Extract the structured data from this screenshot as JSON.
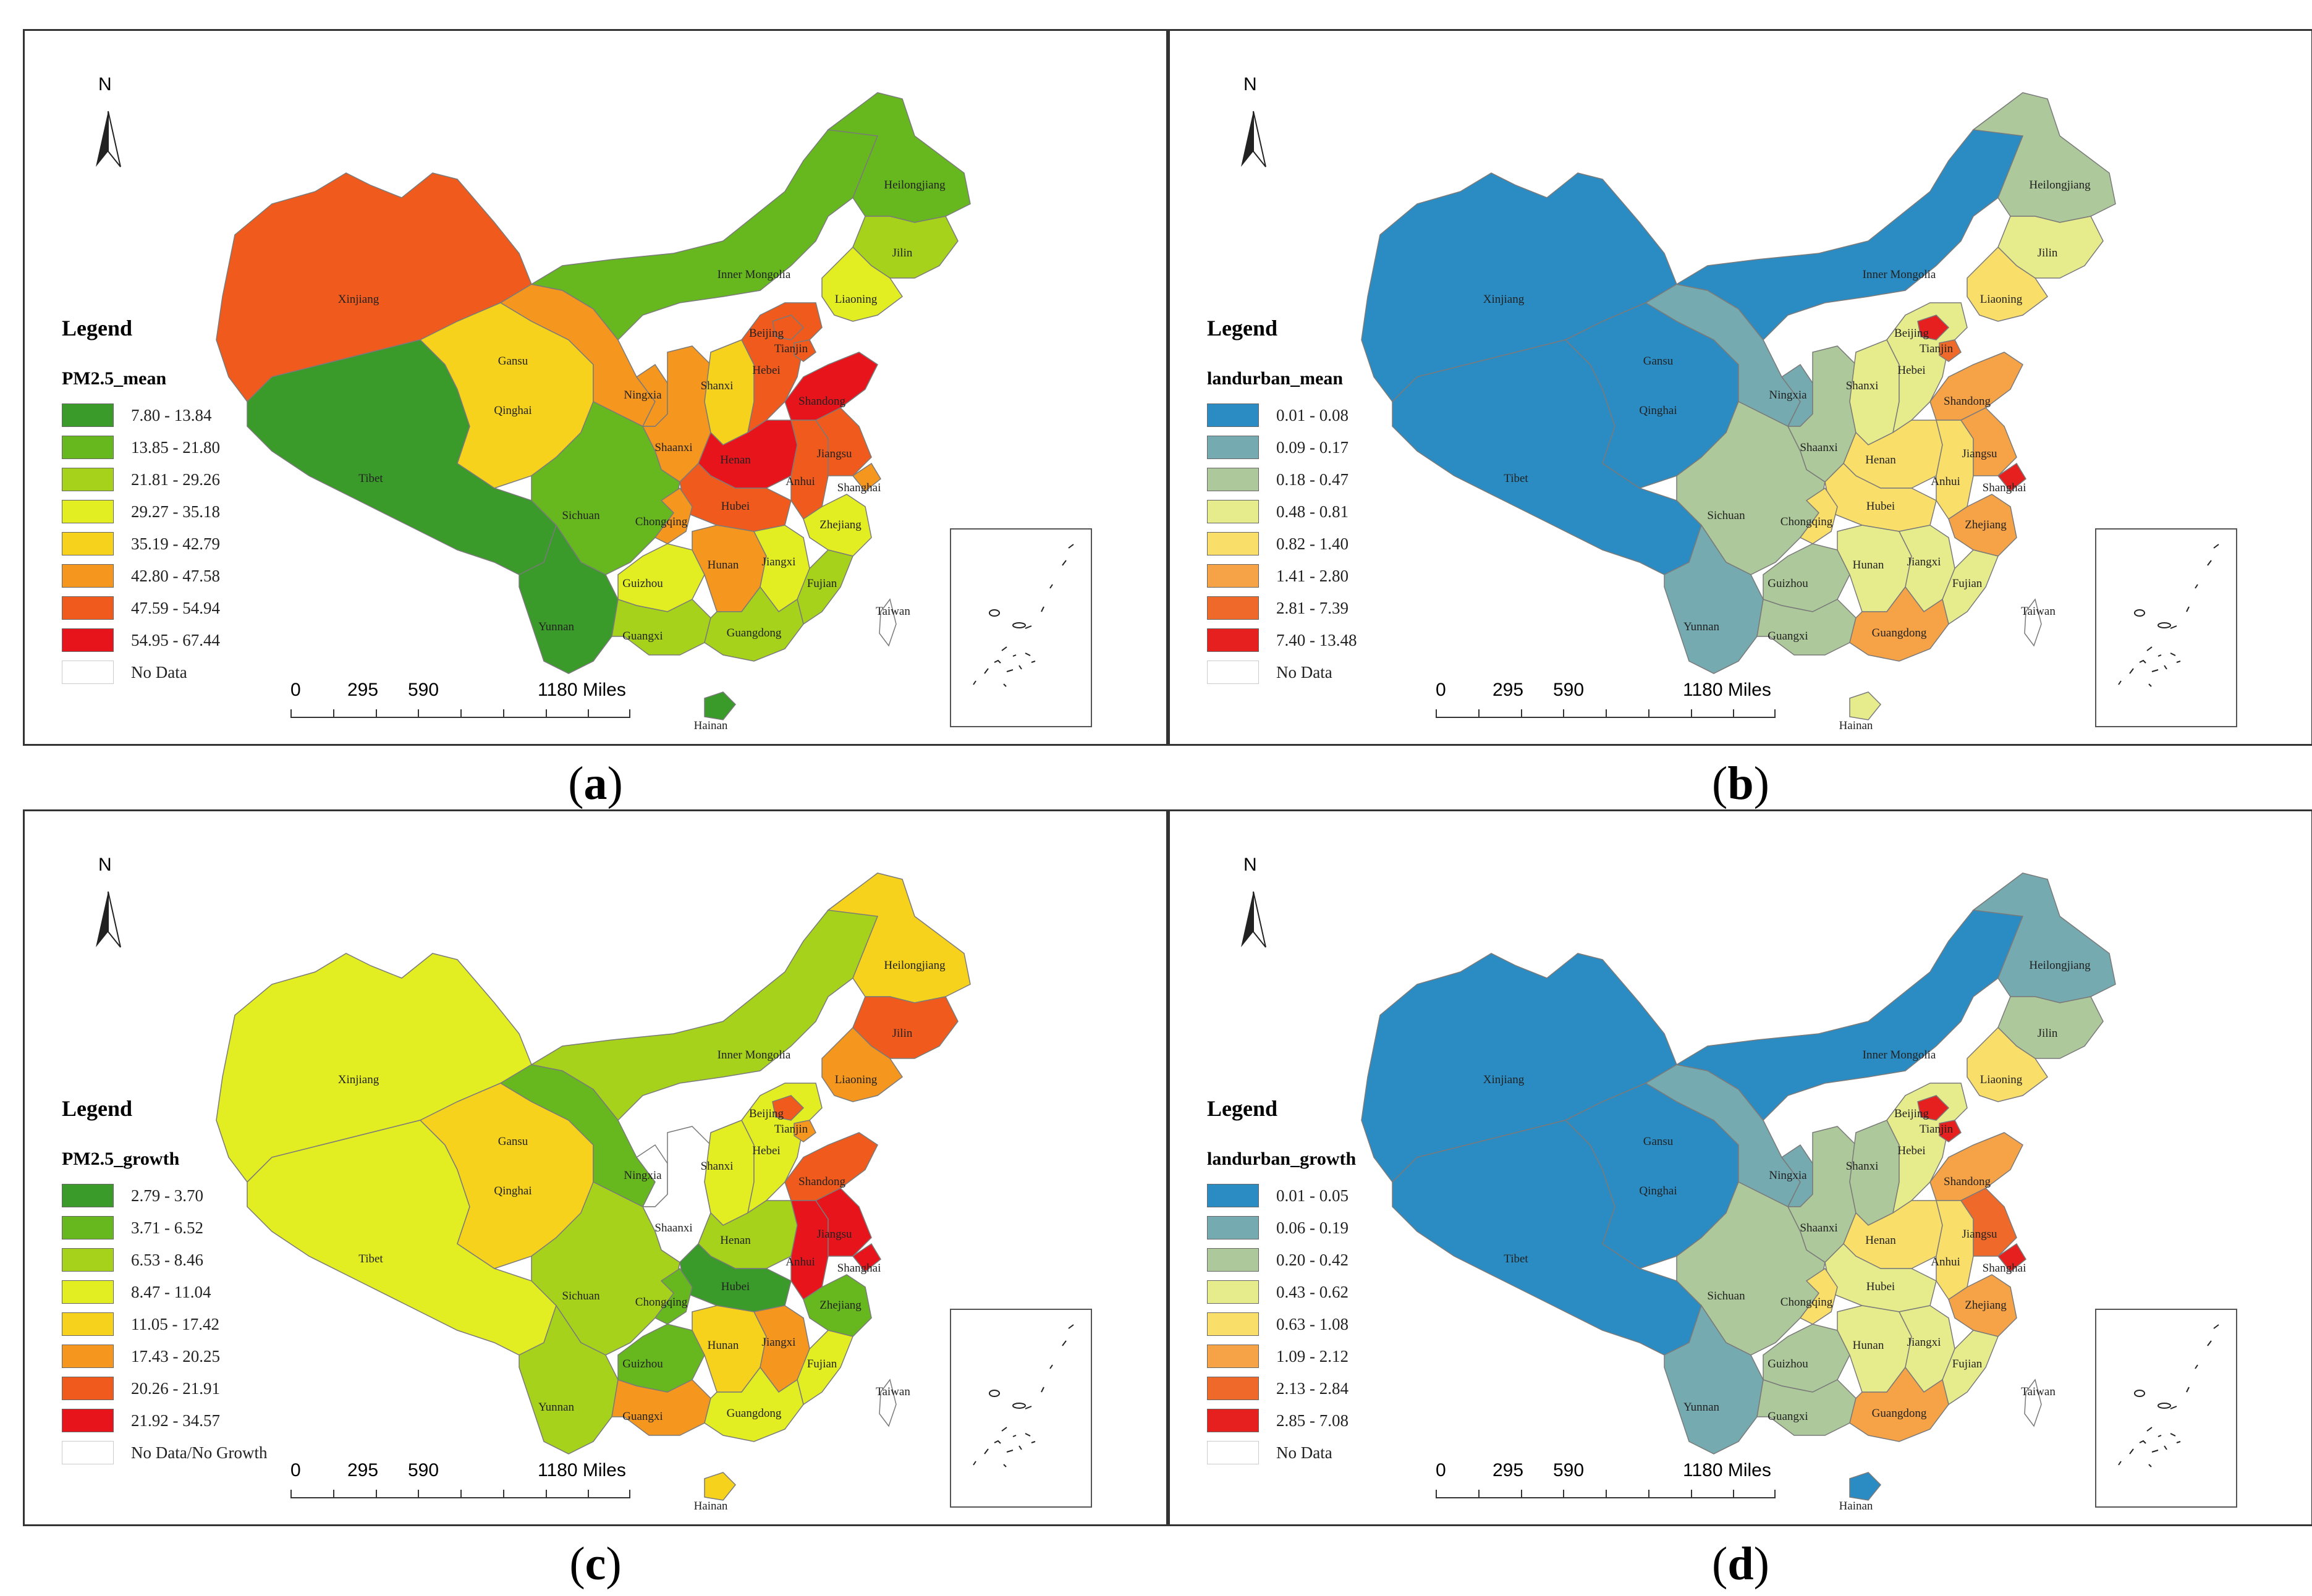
{
  "panels": [
    {
      "id": "a",
      "caption_letter": "a",
      "legend_title": "Legend",
      "field_name": "PM2.5_mean",
      "classes": [
        {
          "label": "7.80 - 13.84",
          "color": "#3a9a2a"
        },
        {
          "label": "13.85 - 21.80",
          "color": "#66b81e"
        },
        {
          "label": "21.81 - 29.26",
          "color": "#a6d21c"
        },
        {
          "label": "29.27 - 35.18",
          "color": "#e2ed22"
        },
        {
          "label": "35.19 - 42.79",
          "color": "#f6d21c"
        },
        {
          "label": "42.80 - 47.58",
          "color": "#f5961f"
        },
        {
          "label": "47.59 - 54.94",
          "color": "#f05a1c"
        },
        {
          "label": "54.95 - 67.44",
          "color": "#e8141c"
        }
      ],
      "no_data_label": "No Data",
      "province_classes": {
        "xinjiang": 6,
        "tibet": 0,
        "qinghai": 4,
        "gansu": 5,
        "innermongolia": 1,
        "heilongjiang": 1,
        "jilin": 2,
        "liaoning": 3,
        "ningxia": 5,
        "shaanxi": 5,
        "shanxi": 4,
        "hebei": 6,
        "beijing": 6,
        "tianjin": 6,
        "shandong": 7,
        "henan": 7,
        "anhui": 6,
        "jiangsu": 6,
        "shanghai": 5,
        "hubei": 6,
        "sichuan": 1,
        "chongqing": 5,
        "yunnan": 0,
        "guizhou": 3,
        "hunan": 5,
        "jiangxi": 3,
        "zhejiang": 3,
        "fujian": 2,
        "guangxi": 2,
        "guangdong": 2,
        "hainan": 0,
        "taiwan": -1
      }
    },
    {
      "id": "b",
      "caption_letter": "b",
      "legend_title": "Legend",
      "field_name": "landurban_mean",
      "classes": [
        {
          "label": "0.01 - 0.08",
          "color": "#2b8cc4"
        },
        {
          "label": "0.09 - 0.17",
          "color": "#74aab0"
        },
        {
          "label": "0.18 - 0.47",
          "color": "#adc89a"
        },
        {
          "label": "0.48 - 0.81",
          "color": "#e6ec8c"
        },
        {
          "label": "0.82 - 1.40",
          "color": "#fade6a"
        },
        {
          "label": "1.41 - 2.80",
          "color": "#f6a246"
        },
        {
          "label": "2.81 - 7.39",
          "color": "#ef6a2a"
        },
        {
          "label": "7.40 - 13.48",
          "color": "#e6201e"
        }
      ],
      "no_data_label": "No Data",
      "province_classes": {
        "xinjiang": 0,
        "tibet": 0,
        "qinghai": 0,
        "gansu": 1,
        "innermongolia": 0,
        "heilongjiang": 2,
        "jilin": 3,
        "liaoning": 4,
        "ningxia": 1,
        "shaanxi": 2,
        "shanxi": 3,
        "hebei": 3,
        "beijing": 7,
        "tianjin": 6,
        "shandong": 5,
        "henan": 4,
        "anhui": 4,
        "jiangsu": 5,
        "shanghai": 7,
        "hubei": 4,
        "sichuan": 2,
        "chongqing": 4,
        "yunnan": 1,
        "guizhou": 2,
        "hunan": 3,
        "jiangxi": 3,
        "zhejiang": 5,
        "fujian": 3,
        "guangxi": 2,
        "guangdong": 5,
        "hainan": 3,
        "taiwan": -1
      }
    },
    {
      "id": "c",
      "caption_letter": "c",
      "legend_title": "Legend",
      "field_name": "PM2.5_growth",
      "classes": [
        {
          "label": "2.79 - 3.70",
          "color": "#3a9a2a"
        },
        {
          "label": "3.71 - 6.52",
          "color": "#66b81e"
        },
        {
          "label": "6.53 - 8.46",
          "color": "#a6d21c"
        },
        {
          "label": "8.47 - 11.04",
          "color": "#e2ed22"
        },
        {
          "label": "11.05 - 17.42",
          "color": "#f6d21c"
        },
        {
          "label": "17.43 - 20.25",
          "color": "#f5961f"
        },
        {
          "label": "20.26 - 21.91",
          "color": "#f05a1c"
        },
        {
          "label": "21.92 - 34.57",
          "color": "#e8141c"
        }
      ],
      "no_data_label": "No Data/No Growth",
      "province_classes": {
        "xinjiang": 3,
        "tibet": 3,
        "qinghai": 4,
        "gansu": 1,
        "innermongolia": 2,
        "heilongjiang": 4,
        "jilin": 6,
        "liaoning": 5,
        "ningxia": -1,
        "shaanxi": -1,
        "shanxi": 3,
        "hebei": 3,
        "beijing": 6,
        "tianjin": 5,
        "shandong": 6,
        "henan": 2,
        "anhui": 7,
        "jiangsu": 7,
        "shanghai": 7,
        "hubei": 0,
        "sichuan": 2,
        "chongqing": 1,
        "yunnan": 2,
        "guizhou": 1,
        "hunan": 4,
        "jiangxi": 5,
        "zhejiang": 1,
        "fujian": 3,
        "guangxi": 5,
        "guangdong": 3,
        "hainan": 4,
        "taiwan": -1
      }
    },
    {
      "id": "d",
      "caption_letter": "d",
      "legend_title": "Legend",
      "field_name": "landurban_growth",
      "classes": [
        {
          "label": "0.01 - 0.05",
          "color": "#2b8cc4"
        },
        {
          "label": "0.06 - 0.19",
          "color": "#74aab0"
        },
        {
          "label": "0.20 - 0.42",
          "color": "#adc89a"
        },
        {
          "label": "0.43 - 0.62",
          "color": "#e6ec8c"
        },
        {
          "label": "0.63 - 1.08",
          "color": "#fade6a"
        },
        {
          "label": "1.09 - 2.12",
          "color": "#f6a246"
        },
        {
          "label": "2.13 - 2.84",
          "color": "#ef6a2a"
        },
        {
          "label": "2.85 - 7.08",
          "color": "#e6201e"
        }
      ],
      "no_data_label": "No Data",
      "province_classes": {
        "xinjiang": 0,
        "tibet": 0,
        "qinghai": 0,
        "gansu": 1,
        "innermongolia": 0,
        "heilongjiang": 1,
        "jilin": 2,
        "liaoning": 4,
        "ningxia": 1,
        "shaanxi": 2,
        "shanxi": 2,
        "hebei": 3,
        "beijing": 7,
        "tianjin": 7,
        "shandong": 5,
        "henan": 4,
        "anhui": 4,
        "jiangsu": 6,
        "shanghai": 7,
        "hubei": 3,
        "sichuan": 2,
        "chongqing": 4,
        "yunnan": 1,
        "guizhou": 2,
        "hunan": 3,
        "jiangxi": 3,
        "zhejiang": 5,
        "fujian": 3,
        "guangxi": 2,
        "guangdong": 5,
        "hainan": 0,
        "taiwan": -1
      }
    }
  ],
  "provinces": [
    {
      "key": "xinjiang",
      "name": "Xinjiang"
    },
    {
      "key": "tibet",
      "name": "Tibet"
    },
    {
      "key": "qinghai",
      "name": "Qinghai"
    },
    {
      "key": "gansu",
      "name": "Gansu"
    },
    {
      "key": "innermongolia",
      "name": "Inner Mongolia"
    },
    {
      "key": "heilongjiang",
      "name": "Heilongjiang"
    },
    {
      "key": "jilin",
      "name": "Jilin"
    },
    {
      "key": "liaoning",
      "name": "Liaoning"
    },
    {
      "key": "ningxia",
      "name": "Ningxia"
    },
    {
      "key": "shaanxi",
      "name": "Shaanxi"
    },
    {
      "key": "shanxi",
      "name": "Shanxi"
    },
    {
      "key": "hebei",
      "name": "Hebei"
    },
    {
      "key": "beijing",
      "name": "Beijing"
    },
    {
      "key": "tianjin",
      "name": "Tianjin"
    },
    {
      "key": "shandong",
      "name": "Shandong"
    },
    {
      "key": "henan",
      "name": "Henan"
    },
    {
      "key": "anhui",
      "name": "Anhui"
    },
    {
      "key": "jiangsu",
      "name": "Jiangsu"
    },
    {
      "key": "shanghai",
      "name": "Shanghai"
    },
    {
      "key": "hubei",
      "name": "Hubei"
    },
    {
      "key": "sichuan",
      "name": "Sichuan"
    },
    {
      "key": "chongqing",
      "name": "Chongqing"
    },
    {
      "key": "yunnan",
      "name": "Yunnan"
    },
    {
      "key": "guizhou",
      "name": "Guizhou"
    },
    {
      "key": "hunan",
      "name": "Hunan"
    },
    {
      "key": "jiangxi",
      "name": "Jiangxi"
    },
    {
      "key": "zhejiang",
      "name": "Zhejiang"
    },
    {
      "key": "fujian",
      "name": "Fujian"
    },
    {
      "key": "guangxi",
      "name": "Guangxi"
    },
    {
      "key": "guangdong",
      "name": "Guangdong"
    },
    {
      "key": "hainan",
      "name": "Hainan"
    },
    {
      "key": "taiwan",
      "name": "Taiwan"
    }
  ],
  "north_arrow_label": "N",
  "scale_bar": {
    "ticks": [
      "0",
      "295",
      "590",
      "1180 Miles"
    ]
  },
  "no_data_color": "#ffffff"
}
